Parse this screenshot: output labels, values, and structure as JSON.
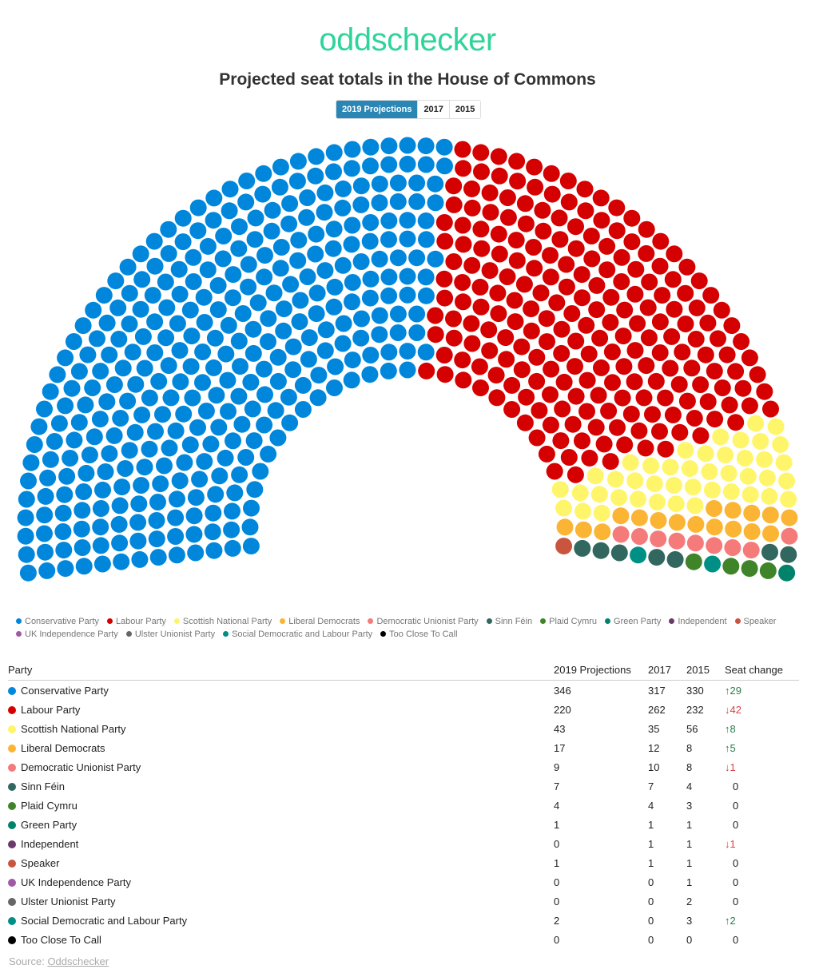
{
  "header": {
    "logo": "oddschecker",
    "title": "Projected seat totals in the House of Commons"
  },
  "chart_data": {
    "type": "parliament",
    "categories": [
      "2019 Projections",
      "2017",
      "2015"
    ],
    "series": [
      {
        "name": "Conservative Party",
        "color": "#0087dc",
        "values": [
          346,
          317,
          330
        ],
        "seat_change": {
          "value": 29,
          "label": "↑29"
        }
      },
      {
        "name": "Labour Party",
        "color": "#d50000",
        "values": [
          220,
          262,
          232
        ],
        "seat_change": {
          "value": -42,
          "label": "↓42"
        }
      },
      {
        "name": "Scottish National Party",
        "color": "#fff56b",
        "values": [
          43,
          35,
          56
        ],
        "seat_change": {
          "value": 8,
          "label": "↑8"
        }
      },
      {
        "name": "Liberal Democrats",
        "color": "#fbb433",
        "values": [
          17,
          12,
          8
        ],
        "seat_change": {
          "value": 5,
          "label": "↑5"
        }
      },
      {
        "name": "Democratic Unionist Party",
        "color": "#f57b7b",
        "values": [
          9,
          10,
          8
        ],
        "seat_change": {
          "value": -1,
          "label": "↓1"
        }
      },
      {
        "name": "Sinn Féin",
        "color": "#326760",
        "values": [
          7,
          7,
          4
        ],
        "seat_change": 0
      },
      {
        "name": "Plaid Cymru",
        "color": "#3f8428",
        "values": [
          4,
          4,
          3
        ],
        "seat_change": 0
      },
      {
        "name": "Green Party",
        "color": "#00826b",
        "values": [
          1,
          1,
          1
        ],
        "seat_change": 0
      },
      {
        "name": "Independent",
        "color": "#6b3a6b",
        "values": [
          0,
          1,
          1
        ],
        "seat_change": {
          "value": -1,
          "label": "↓1"
        }
      },
      {
        "name": "Speaker",
        "color": "#c9553f",
        "values": [
          1,
          1,
          1
        ],
        "seat_change": 0
      },
      {
        "name": "UK Independence Party",
        "color": "#a05aa5",
        "values": [
          0,
          0,
          1
        ],
        "seat_change": 0
      },
      {
        "name": "Ulster Unionist Party",
        "color": "#666666",
        "values": [
          0,
          0,
          2
        ],
        "seat_change": 0
      },
      {
        "name": "Social Democratic and Labour Party",
        "color": "#008f85",
        "values": [
          2,
          0,
          3
        ],
        "seat_change": {
          "value": 2,
          "label": "↑2"
        }
      },
      {
        "name": "Too Close To Call",
        "color": "#000000",
        "values": [
          0,
          0,
          0
        ],
        "seat_change": 0
      }
    ]
  },
  "table": {
    "columns": [
      "Party",
      "2019 Projections",
      "2017",
      "2015",
      "Seat change"
    ]
  },
  "source": {
    "label": "Source:",
    "link": "Oddschecker"
  }
}
